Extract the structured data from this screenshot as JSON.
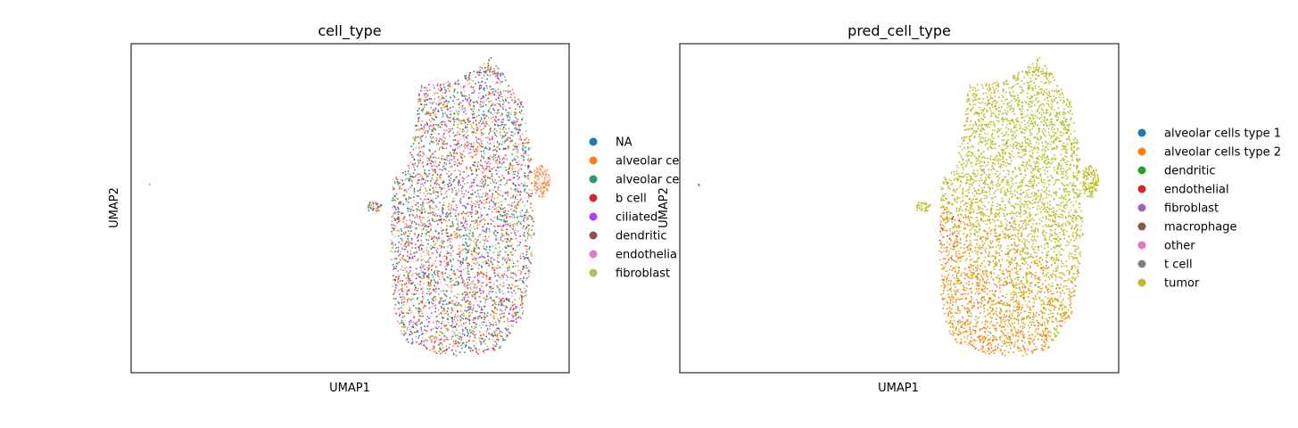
{
  "chart_data": [
    {
      "type": "scatter",
      "title": "cell_type",
      "xlabel": "UMAP1",
      "ylabel": "UMAP2",
      "grid": false,
      "ticks": false,
      "legend_placement": "right, outside (clipped)",
      "legend": [
        {
          "label": "NA",
          "color": "#1f77b4"
        },
        {
          "label": "alveolar ce",
          "color": "#ff7f0e"
        },
        {
          "label": "alveolar ce",
          "color": "#279e68"
        },
        {
          "label": "b cell",
          "color": "#d62728"
        },
        {
          "label": "ciliated",
          "color": "#aa40fc"
        },
        {
          "label": "dendritic",
          "color": "#8c564b"
        },
        {
          "label": "endothelia",
          "color": "#e377c2"
        },
        {
          "label": "fibroblast",
          "color": "#b5bd61"
        }
      ]
    },
    {
      "type": "scatter",
      "title": "pred_cell_type",
      "xlabel": "UMAP1",
      "ylabel": "UMAP2",
      "grid": false,
      "ticks": false,
      "legend_placement": "right, outside",
      "legend": [
        {
          "label": "alveolar cells type 1",
          "color": "#1f77b4"
        },
        {
          "label": "alveolar cells type 2",
          "color": "#ff7f0e"
        },
        {
          "label": "dendritic",
          "color": "#2ca02c"
        },
        {
          "label": "endothelial",
          "color": "#d62728"
        },
        {
          "label": "fibroblast",
          "color": "#9467bd"
        },
        {
          "label": "macrophage",
          "color": "#8c564b"
        },
        {
          "label": "other",
          "color": "#e377c2"
        },
        {
          "label": "t cell",
          "color": "#7f7f7f"
        },
        {
          "label": "tumor",
          "color": "#bcbd22"
        }
      ]
    }
  ]
}
